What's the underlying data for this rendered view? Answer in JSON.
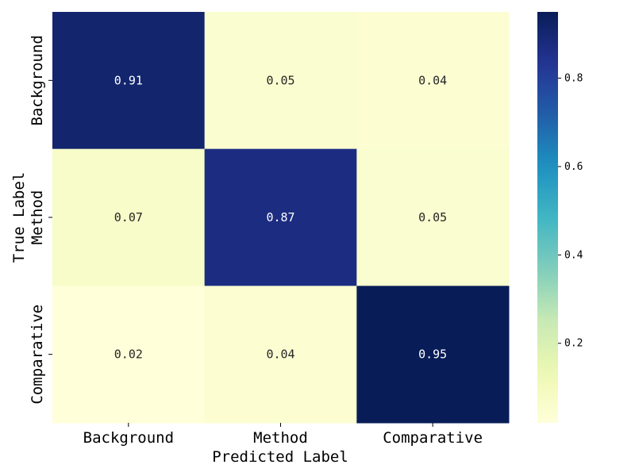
{
  "chart_data": {
    "type": "heatmap",
    "xlabel": "Predicted Label",
    "ylabel": "True Label",
    "x_categories": [
      "Background",
      "Method",
      "Comparative"
    ],
    "y_categories": [
      "Background",
      "Method",
      "Comparative"
    ],
    "values": [
      [
        0.91,
        0.05,
        0.04
      ],
      [
        0.07,
        0.87,
        0.05
      ],
      [
        0.02,
        0.04,
        0.95
      ]
    ],
    "value_labels": [
      [
        "0.91",
        "0.05",
        "0.04"
      ],
      [
        "0.07",
        "0.87",
        "0.05"
      ],
      [
        "0.02",
        "0.04",
        "0.95"
      ]
    ],
    "colormap": "YlGnBu",
    "vmin": 0.02,
    "vmax": 0.95,
    "colorbar_ticks": [
      0.2,
      0.4,
      0.6,
      0.8
    ],
    "colorbar_tick_labels": [
      "0.2",
      "0.4",
      "0.6",
      "0.8"
    ]
  }
}
